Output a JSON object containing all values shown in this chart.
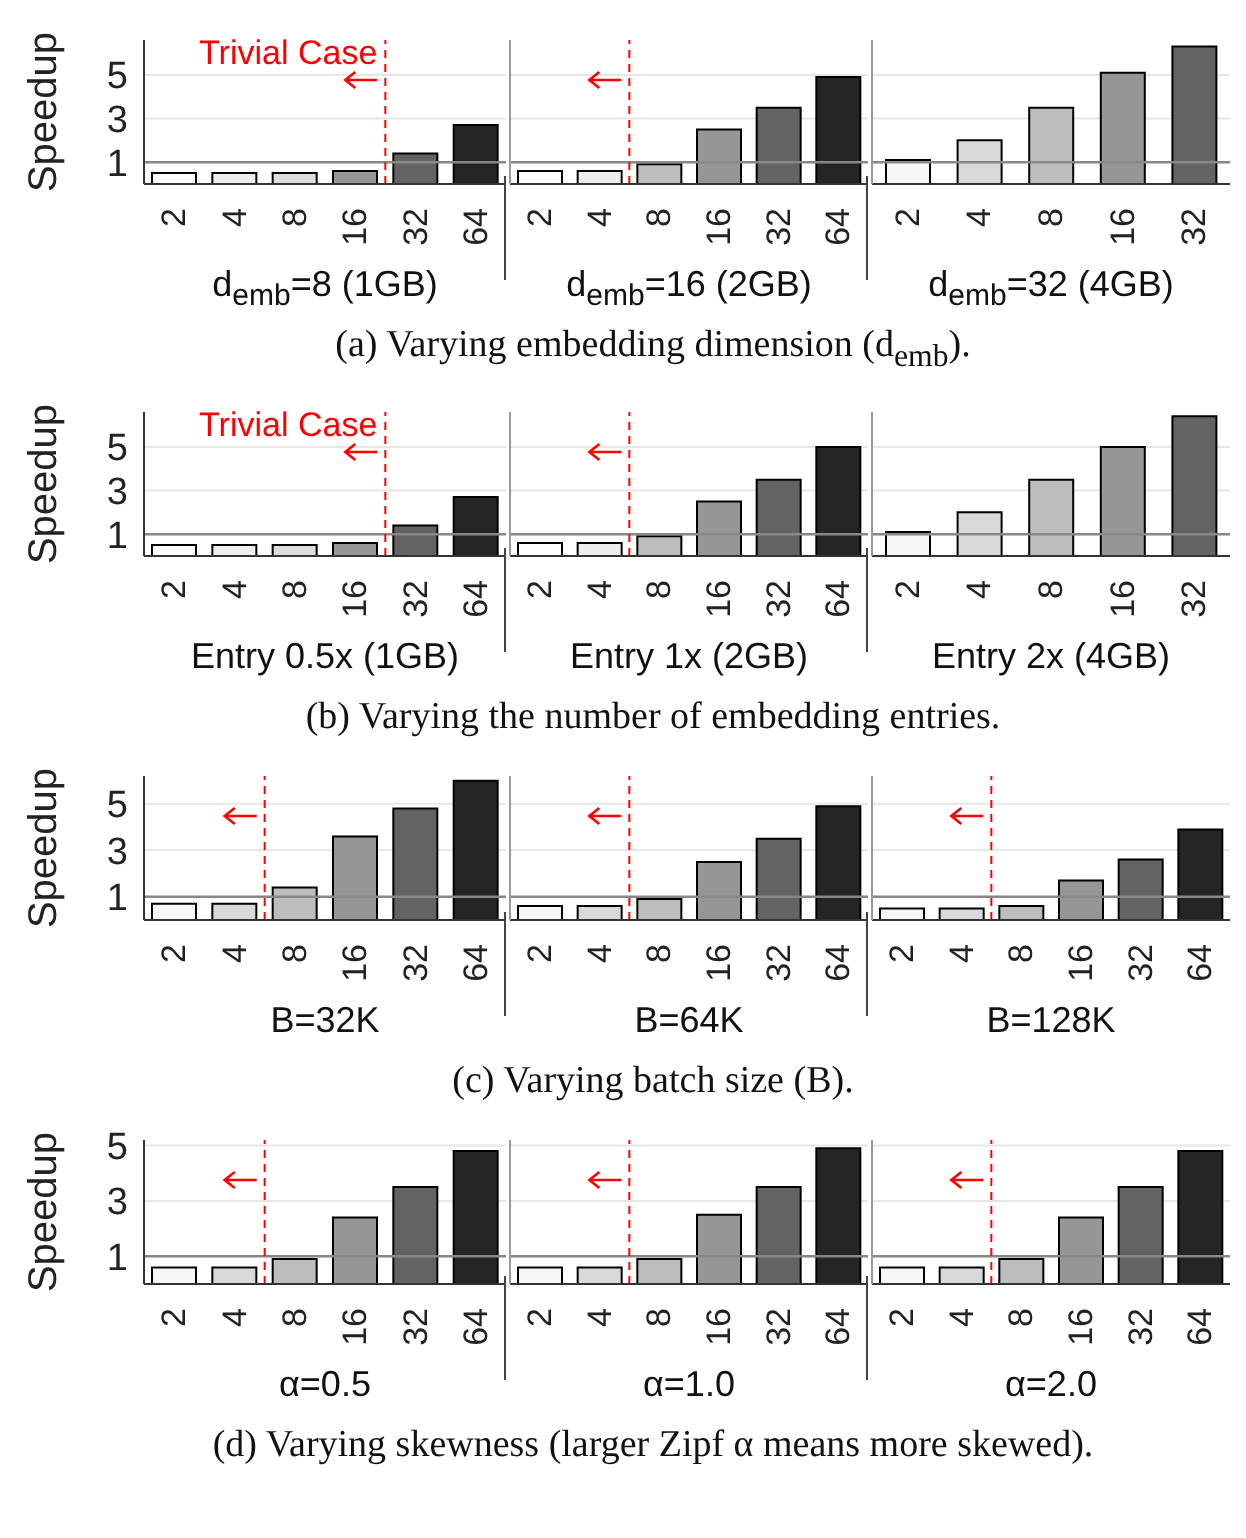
{
  "chart_data": [
    {
      "type": "bar",
      "categories": [
        "2",
        "4",
        "8",
        "16",
        "32",
        "64"
      ],
      "values": [
        0.5,
        0.5,
        0.5,
        0.6,
        1.4,
        2.7
      ],
      "colors": [
        "#ffffff",
        "#eeeeee",
        "#dddddd",
        "#969696",
        "#636363",
        "#252525"
      ],
      "ylim": [
        0,
        6.6
      ],
      "yticks": [
        1,
        3,
        5
      ],
      "ylabel": "Speedup",
      "xlabel": "d$_{emb}$=8 (1GB)",
      "grid": "y",
      "ref_lines": [
        {
          "axis": "y",
          "value": 1,
          "color": "#888888"
        },
        {
          "axis": "x",
          "value": "32",
          "label": "Trivial Case",
          "color": "#ff0000",
          "line_style": "dashed"
        }
      ],
      "annotations": [
        "(a) Varying embedding dimension (d$_{emb}$)."
      ]
    },
    {
      "type": "bar",
      "categories": [
        "2",
        "4",
        "8",
        "16",
        "32",
        "64"
      ],
      "values": [
        0.6,
        0.6,
        0.9,
        2.5,
        3.5,
        4.9
      ],
      "colors": [
        "#ffffff",
        "#eeeeee",
        "#bdbdbd",
        "#969696",
        "#636363",
        "#252525"
      ],
      "ylim": [
        0,
        6.6
      ],
      "yticks": [
        1,
        3,
        5
      ],
      "tick_labels": "x",
      "xlabel": "d$_{emb}$=16 (2GB)",
      "grid": "y",
      "ref_lines": [
        {
          "axis": "y",
          "value": 1,
          "color": "#888888"
        },
        {
          "axis": "x",
          "value": "8",
          "color": "#ff0000",
          "line_style": "dashed"
        }
      ]
    },
    {
      "type": "bar",
      "categories": [
        "2",
        "4",
        "8",
        "16",
        "32"
      ],
      "values": [
        1.1,
        2.0,
        3.5,
        5.1,
        6.3
      ],
      "colors": [
        "#f7f7f7",
        "#d9d9d9",
        "#bdbdbd",
        "#969696",
        "#636363"
      ],
      "ylim": [
        0,
        6.6
      ],
      "yticks": [
        1,
        3,
        5
      ],
      "tick_labels": "x",
      "xlabel": "d$_{emb}$=32 (4GB)",
      "grid": "y",
      "ref_lines": [
        {
          "axis": "y",
          "value": 1,
          "color": "#888888"
        }
      ]
    },
    {
      "type": "bar",
      "categories": [
        "2",
        "4",
        "8",
        "16",
        "32",
        "64"
      ],
      "values": [
        0.5,
        0.5,
        0.5,
        0.6,
        1.4,
        2.7
      ],
      "colors": [
        "#ffffff",
        "#eeeeee",
        "#dddddd",
        "#969696",
        "#636363",
        "#252525"
      ],
      "ylim": [
        0,
        6.6
      ],
      "yticks": [
        1,
        3,
        5
      ],
      "ylabel": "Speedup",
      "xlabel": "Entry 0.5x (1GB)",
      "grid": "y",
      "ref_lines": [
        {
          "axis": "y",
          "value": 1,
          "color": "#888888"
        },
        {
          "axis": "x",
          "value": "32",
          "label": "Trivial Case",
          "color": "#ff0000",
          "line_style": "dashed"
        }
      ],
      "annotations": [
        "(b) Varying the number of embedding entries."
      ]
    },
    {
      "type": "bar",
      "categories": [
        "2",
        "4",
        "8",
        "16",
        "32",
        "64"
      ],
      "values": [
        0.6,
        0.6,
        0.9,
        2.5,
        3.5,
        5.0
      ],
      "colors": [
        "#ffffff",
        "#eeeeee",
        "#bdbdbd",
        "#969696",
        "#636363",
        "#252525"
      ],
      "ylim": [
        0,
        6.6
      ],
      "yticks": [
        1,
        3,
        5
      ],
      "tick_labels": "x",
      "xlabel": "Entry 1x (2GB)",
      "grid": "y",
      "ref_lines": [
        {
          "axis": "y",
          "value": 1,
          "color": "#888888"
        },
        {
          "axis": "x",
          "value": "8",
          "color": "#ff0000",
          "line_style": "dashed"
        }
      ]
    },
    {
      "type": "bar",
      "categories": [
        "2",
        "4",
        "8",
        "16",
        "32"
      ],
      "values": [
        1.1,
        2.0,
        3.5,
        5.0,
        6.4
      ],
      "colors": [
        "#f7f7f7",
        "#d9d9d9",
        "#bdbdbd",
        "#969696",
        "#636363"
      ],
      "ylim": [
        0,
        6.6
      ],
      "yticks": [
        1,
        3,
        5
      ],
      "tick_labels": "x",
      "xlabel": "Entry 2x (4GB)",
      "grid": "y",
      "ref_lines": [
        {
          "axis": "y",
          "value": 1,
          "color": "#888888"
        }
      ]
    },
    {
      "type": "bar",
      "categories": [
        "2",
        "4",
        "8",
        "16",
        "32",
        "64"
      ],
      "values": [
        0.7,
        0.7,
        1.4,
        3.6,
        4.8,
        6.0
      ],
      "colors": [
        "#f7f7f7",
        "#d9d9d9",
        "#bdbdbd",
        "#969696",
        "#636363",
        "#252525"
      ],
      "ylim": [
        0,
        6.2
      ],
      "yticks": [
        1,
        3,
        5
      ],
      "ylabel": "Speedup",
      "xlabel": "B=32K",
      "grid": "y",
      "ref_lines": [
        {
          "axis": "y",
          "value": 1,
          "color": "#888888"
        },
        {
          "axis": "x",
          "value": "8",
          "color": "#ff0000",
          "line_style": "dashed"
        }
      ],
      "annotations": [
        "(c) Varying batch size (B)."
      ]
    },
    {
      "type": "bar",
      "categories": [
        "2",
        "4",
        "8",
        "16",
        "32",
        "64"
      ],
      "values": [
        0.6,
        0.6,
        0.9,
        2.5,
        3.5,
        4.9
      ],
      "colors": [
        "#f7f7f7",
        "#d9d9d9",
        "#bdbdbd",
        "#969696",
        "#636363",
        "#252525"
      ],
      "ylim": [
        0,
        6.2
      ],
      "yticks": [
        1,
        3,
        5
      ],
      "tick_labels": "x",
      "xlabel": "B=64K",
      "grid": "y",
      "ref_lines": [
        {
          "axis": "y",
          "value": 1,
          "color": "#888888"
        },
        {
          "axis": "x",
          "value": "8",
          "color": "#ff0000",
          "line_style": "dashed"
        }
      ]
    },
    {
      "type": "bar",
      "categories": [
        "2",
        "4",
        "8",
        "16",
        "32",
        "64"
      ],
      "values": [
        0.5,
        0.5,
        0.6,
        1.7,
        2.6,
        3.9
      ],
      "colors": [
        "#f7f7f7",
        "#d9d9d9",
        "#bdbdbd",
        "#969696",
        "#636363",
        "#252525"
      ],
      "ylim": [
        0,
        6.2
      ],
      "yticks": [
        1,
        3,
        5
      ],
      "tick_labels": "x",
      "xlabel": "B=128K",
      "grid": "y",
      "ref_lines": [
        {
          "axis": "y",
          "value": 1,
          "color": "#888888"
        },
        {
          "axis": "x",
          "value": "8",
          "color": "#ff0000",
          "line_style": "dashed"
        }
      ]
    },
    {
      "type": "bar",
      "categories": [
        "2",
        "4",
        "8",
        "16",
        "32",
        "64"
      ],
      "values": [
        0.6,
        0.6,
        0.9,
        2.4,
        3.5,
        4.8
      ],
      "colors": [
        "#f7f7f7",
        "#d9d9d9",
        "#bdbdbd",
        "#969696",
        "#636363",
        "#252525"
      ],
      "ylim": [
        0,
        5.2
      ],
      "yticks": [
        1,
        3,
        5
      ],
      "ylabel": "Speedup",
      "xlabel": "α=0.5",
      "grid": "y",
      "ref_lines": [
        {
          "axis": "y",
          "value": 1,
          "color": "#888888"
        },
        {
          "axis": "x",
          "value": "8",
          "color": "#ff0000",
          "line_style": "dashed"
        }
      ],
      "annotations": [
        "(d) Varying skewness (larger Zipf α means more skewed)."
      ]
    },
    {
      "type": "bar",
      "categories": [
        "2",
        "4",
        "8",
        "16",
        "32",
        "64"
      ],
      "values": [
        0.6,
        0.6,
        0.9,
        2.5,
        3.5,
        4.9
      ],
      "colors": [
        "#f7f7f7",
        "#d9d9d9",
        "#bdbdbd",
        "#969696",
        "#636363",
        "#252525"
      ],
      "ylim": [
        0,
        5.2
      ],
      "yticks": [
        1,
        3,
        5
      ],
      "tick_labels": "x",
      "xlabel": "α=1.0",
      "grid": "y",
      "ref_lines": [
        {
          "axis": "y",
          "value": 1,
          "color": "#888888"
        },
        {
          "axis": "x",
          "value": "8",
          "color": "#ff0000",
          "line_style": "dashed"
        }
      ]
    },
    {
      "type": "bar",
      "categories": [
        "2",
        "4",
        "8",
        "16",
        "32",
        "64"
      ],
      "values": [
        0.6,
        0.6,
        0.9,
        2.4,
        3.5,
        4.8
      ],
      "colors": [
        "#f7f7f7",
        "#d9d9d9",
        "#bdbdbd",
        "#969696",
        "#636363",
        "#252525"
      ],
      "ylim": [
        0,
        5.2
      ],
      "yticks": [
        1,
        3,
        5
      ],
      "tick_labels": "x",
      "xlabel": "α=2.0",
      "grid": "y",
      "ref_lines": [
        {
          "axis": "y",
          "value": 1,
          "color": "#888888"
        },
        {
          "axis": "x",
          "value": "8",
          "color": "#ff0000",
          "line_style": "dashed"
        }
      ]
    }
  ]
}
